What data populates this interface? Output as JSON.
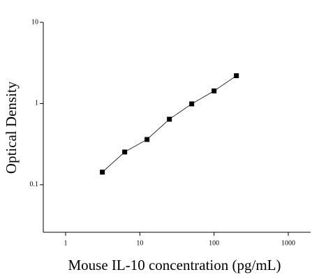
{
  "chart_data": {
    "type": "scatter",
    "x_label": "Mouse IL-10 concentration (pg/mL)",
    "y_label": "Optical Density",
    "series": [
      {
        "x": [
          3.125,
          6.25,
          12.5,
          25,
          50,
          100,
          200
        ],
        "values": [
          0.143,
          0.253,
          0.361,
          0.641,
          0.99,
          1.43,
          2.2
        ],
        "color": "#000000"
      }
    ],
    "xscale": "log",
    "yscale": "log",
    "xlim": [
      0.5,
      2000
    ],
    "ylim": [
      0.026,
      10
    ],
    "xticks": [
      1,
      10,
      100,
      1000
    ],
    "yticks": [
      0.1,
      1,
      10
    ],
    "fit_line": true
  }
}
